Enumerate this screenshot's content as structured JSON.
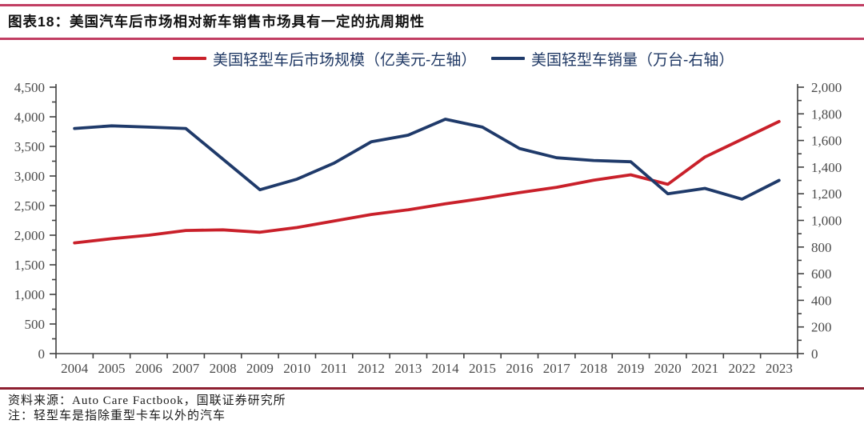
{
  "figure": {
    "title": "图表18：美国汽车后市场相对新车销售市场具有一定的抗周期性",
    "source": "资料来源：Auto Care Factbook，国联证券研究所",
    "note": "注：轻型车是指除重型卡车以外的汽车"
  },
  "colors": {
    "aftermarket_line": "#C9202A",
    "sales_line": "#1F3A6A",
    "legend_text": "#1F3864",
    "title_rule": "#C13E63",
    "footer_rule": "#8E2031",
    "axis_line": "#404040",
    "axis_text": "#4A4A4A"
  },
  "chart_data": {
    "type": "line",
    "title": "",
    "categories": [
      "2004",
      "2005",
      "2006",
      "2007",
      "2008",
      "2009",
      "2010",
      "2011",
      "2012",
      "2013",
      "2014",
      "2015",
      "2016",
      "2017",
      "2018",
      "2019",
      "2020",
      "2021",
      "2022",
      "2023"
    ],
    "series": [
      {
        "name": "美国轻型车后市场规模（亿美元-左轴）",
        "axis": "left",
        "color": "#C9202A",
        "values": [
          1870,
          1940,
          2000,
          2080,
          2090,
          2050,
          2130,
          2240,
          2350,
          2430,
          2530,
          2620,
          2720,
          2810,
          2930,
          3020,
          2860,
          3320,
          3620,
          3920
        ]
      },
      {
        "name": "美国轻型车销量（万台-右轴）",
        "axis": "right",
        "color": "#1F3A6A",
        "values": [
          1690,
          1710,
          1700,
          1690,
          1460,
          1230,
          1310,
          1430,
          1590,
          1640,
          1760,
          1700,
          1540,
          1470,
          1450,
          1440,
          1200,
          1240,
          1160,
          1300
        ]
      }
    ],
    "left_axis": {
      "min": 0,
      "max": 4500,
      "major_step": 500,
      "minor_step": 250,
      "tick_labels": [
        "0",
        "500",
        "1,000",
        "1,500",
        "2,000",
        "2,500",
        "3,000",
        "3,500",
        "4,000",
        "4,500"
      ]
    },
    "right_axis": {
      "min": 0,
      "max": 2000,
      "major_step": 200,
      "minor_step": 100,
      "tick_labels": [
        "0",
        "200",
        "400",
        "600",
        "800",
        "1,000",
        "1,200",
        "1,400",
        "1,600",
        "1,800",
        "2,000"
      ]
    },
    "xlabel": "",
    "ylabel": "",
    "legend_position": "top",
    "grid": false
  }
}
